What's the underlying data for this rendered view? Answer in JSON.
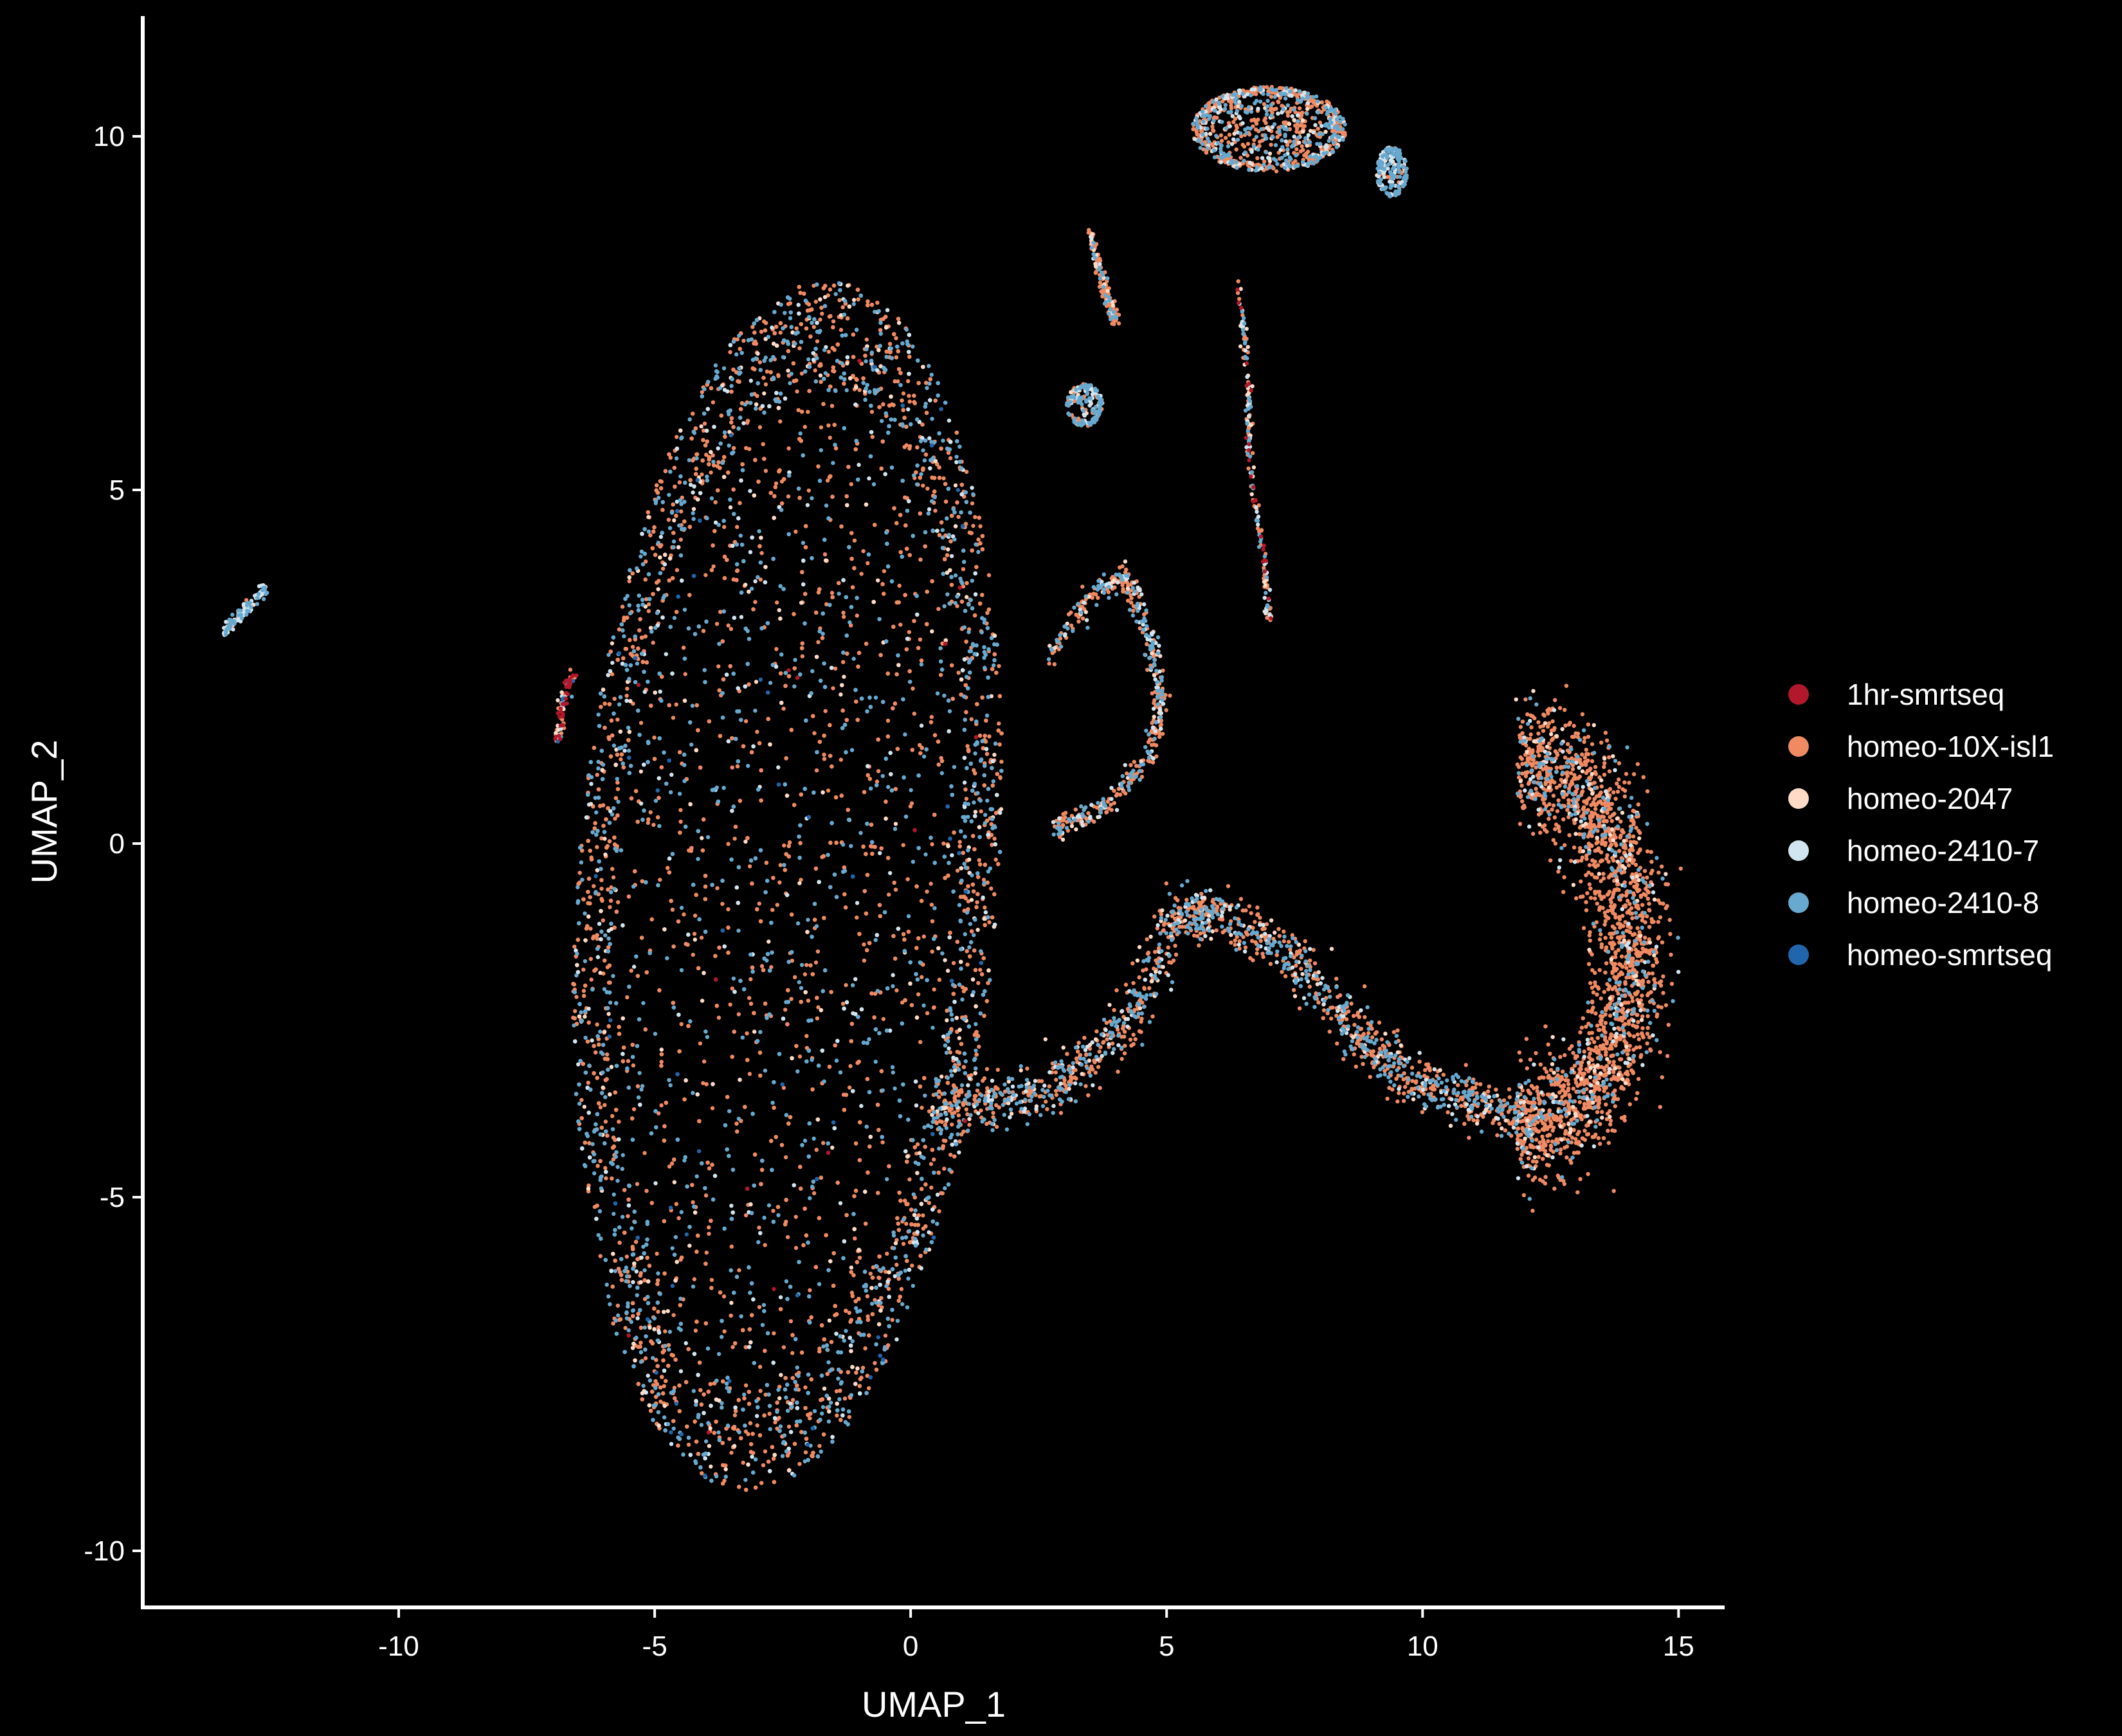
{
  "chart_data": {
    "type": "scatter",
    "title": "",
    "xlabel": "UMAP_1",
    "ylabel": "UMAP_2",
    "xlim": [
      -15.0,
      15.9
    ],
    "ylim": [
      -10.8,
      11.7
    ],
    "xticks": [
      -10,
      -5,
      0,
      5,
      10,
      15
    ],
    "yticks": [
      -10,
      -5,
      0,
      5,
      10
    ],
    "grid": false,
    "legend_position": "right",
    "background": "#000000",
    "series": [
      {
        "name": "1hr-smrtseq",
        "color": "#b2182b"
      },
      {
        "name": "homeo-10X-isl1",
        "color": "#ef8a62"
      },
      {
        "name": "homeo-2047",
        "color": "#fddbc7"
      },
      {
        "name": "homeo-2410-7",
        "color": "#d1e5f0"
      },
      {
        "name": "homeo-2410-8",
        "color": "#67a9cf"
      },
      {
        "name": "homeo-smrtseq",
        "color": "#2166ac"
      }
    ],
    "clusters": [
      {
        "note_series_mix": [
          0.004,
          0.48,
          0.08,
          0.08,
          0.34,
          0.016
        ],
        "shape": "ellipse",
        "cx": -2.4,
        "cy": -0.6,
        "rx": 4.1,
        "ry": 8.6,
        "tilt": -0.12,
        "n": 9000
      },
      {
        "note_series_mix": [
          0.0,
          0.52,
          0.06,
          0.1,
          0.32,
          0.0
        ],
        "shape": "path",
        "points": [
          [
            0.5,
            -3.8
          ],
          [
            1.8,
            -3.6
          ],
          [
            3.0,
            -3.4
          ],
          [
            4.3,
            -2.5
          ],
          [
            5.2,
            -1.0
          ],
          [
            6.0,
            -1.0
          ],
          [
            7.5,
            -1.6
          ],
          [
            8.6,
            -2.6
          ],
          [
            9.5,
            -3.2
          ],
          [
            10.8,
            -3.6
          ],
          [
            12.0,
            -3.9
          ]
        ],
        "width": 0.35,
        "n": 1500
      },
      {
        "note_series_mix": [
          0.0,
          0.78,
          0.06,
          0.04,
          0.12,
          0.0
        ],
        "shape": "arc",
        "cx": 11.9,
        "cy": -1.4,
        "r": 2.2,
        "start": -1.6,
        "end": 1.6,
        "width": 0.7,
        "n": 2200
      },
      {
        "note_series_mix": [
          0.0,
          0.5,
          0.1,
          0.15,
          0.25,
          0.0
        ],
        "shape": "path",
        "points": [
          [
            2.7,
            2.6
          ],
          [
            3.5,
            3.5
          ],
          [
            4.2,
            3.8
          ],
          [
            4.7,
            2.9
          ],
          [
            4.9,
            2.0
          ],
          [
            4.7,
            1.3
          ],
          [
            3.8,
            0.5
          ],
          [
            2.8,
            0.2
          ]
        ],
        "width": 0.15,
        "n": 500
      },
      {
        "note_series_mix": [
          0.0,
          0.55,
          0.08,
          0.12,
          0.25,
          0.0
        ],
        "shape": "ellipse",
        "cx": 7.0,
        "cy": 10.1,
        "rx": 1.5,
        "ry": 0.6,
        "tilt": 0.0,
        "n": 900
      },
      {
        "note_series_mix": [
          0.0,
          0.2,
          0.05,
          0.25,
          0.5,
          0.0
        ],
        "shape": "ellipse",
        "cx": 9.4,
        "cy": 9.5,
        "rx": 0.3,
        "ry": 0.35,
        "tilt": 0.0,
        "n": 200
      },
      {
        "note_series_mix": [
          0.0,
          0.7,
          0.1,
          0.05,
          0.15,
          0.0
        ],
        "shape": "path",
        "points": [
          [
            3.5,
            8.6
          ],
          [
            3.8,
            7.8
          ],
          [
            4.0,
            7.4
          ]
        ],
        "width": 0.08,
        "n": 160
      },
      {
        "note_series_mix": [
          0.0,
          0.2,
          0.05,
          0.3,
          0.45,
          0.0
        ],
        "shape": "ellipse",
        "cx": 3.4,
        "cy": 6.2,
        "rx": 0.35,
        "ry": 0.3,
        "tilt": 0.0,
        "n": 180
      },
      {
        "note_series_mix": [
          0.08,
          0.4,
          0.12,
          0.15,
          0.25,
          0.0
        ],
        "shape": "path",
        "points": [
          [
            6.4,
            8.0
          ],
          [
            6.6,
            6.5
          ],
          [
            6.6,
            5.5
          ],
          [
            6.9,
            4.0
          ],
          [
            7.0,
            3.2
          ]
        ],
        "width": 0.06,
        "n": 200
      },
      {
        "note_series_mix": [
          0.0,
          0.1,
          0.05,
          0.45,
          0.4,
          0.0
        ],
        "shape": "path",
        "points": [
          [
            -13.4,
            3.0
          ],
          [
            -13.0,
            3.3
          ],
          [
            -12.6,
            3.6
          ]
        ],
        "width": 0.08,
        "n": 120
      },
      {
        "note_series_mix": [
          0.35,
          0.25,
          0.1,
          0.1,
          0.1,
          0.1
        ],
        "shape": "path",
        "points": [
          [
            -6.9,
            1.4
          ],
          [
            -6.8,
            2.0
          ],
          [
            -6.6,
            2.4
          ]
        ],
        "width": 0.08,
        "n": 80
      }
    ]
  }
}
